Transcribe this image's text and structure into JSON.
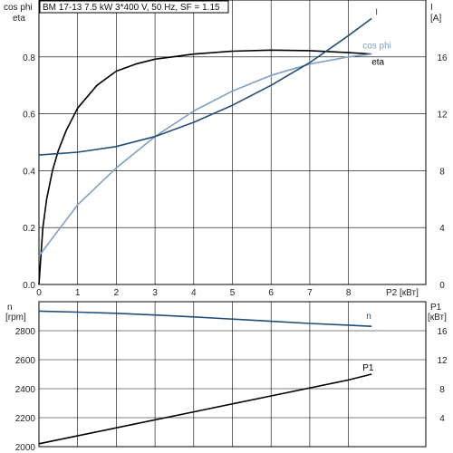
{
  "header": {
    "title": "BM 17-13   7.5 kW   3*400 V, 50 Hz, SF = 1.15"
  },
  "colors": {
    "grid": "#000000",
    "eta": "#000000",
    "I": "#1f4e79",
    "cos_phi": "#7ea0c4",
    "n": "#1f4e79",
    "P1": "#000000"
  },
  "chart_data": [
    {
      "type": "line",
      "title": "BM 17-13   7.5 kW   3*400 V, 50 Hz, SF = 1.15",
      "xlabel": "P2 [кВт]",
      "ylabel_left": "cos phi\neta",
      "ylabel_right": "I\n[A]",
      "xlim": [
        0,
        10
      ],
      "ylim_left": [
        0,
        1.0
      ],
      "ylim_right": [
        0,
        20
      ],
      "x_ticks": [
        0,
        1,
        2,
        3,
        4,
        5,
        6,
        7,
        8
      ],
      "y_ticks_left": [
        "0.0",
        "0.2",
        "0.4",
        "0.6",
        "0.8"
      ],
      "y_ticks_right": [
        "0",
        "4",
        "8",
        "12",
        "16"
      ],
      "grid": true,
      "series": [
        {
          "name": "eta",
          "axis": "left",
          "color": "#000000",
          "x": [
            0,
            0.1,
            0.2,
            0.35,
            0.5,
            0.7,
            1.0,
            1.5,
            2,
            2.5,
            3,
            4,
            5,
            6,
            7,
            8,
            8.6
          ],
          "y": [
            0,
            0.2,
            0.3,
            0.4,
            0.47,
            0.54,
            0.62,
            0.7,
            0.75,
            0.775,
            0.792,
            0.81,
            0.82,
            0.824,
            0.822,
            0.815,
            0.81
          ]
        },
        {
          "name": "cos phi",
          "axis": "left",
          "color": "#7ea0c4",
          "x": [
            0,
            0.5,
            1,
            2,
            3,
            4,
            5,
            6,
            7,
            8,
            8.6
          ],
          "y": [
            0.1,
            0.19,
            0.28,
            0.41,
            0.52,
            0.61,
            0.68,
            0.735,
            0.775,
            0.8,
            0.81
          ]
        },
        {
          "name": "I",
          "axis": "right",
          "color": "#1f4e79",
          "x": [
            0,
            0.5,
            1,
            2,
            3,
            4,
            5,
            6,
            7,
            8,
            8.6
          ],
          "y": [
            9.1,
            9.2,
            9.3,
            9.7,
            10.4,
            11.4,
            12.6,
            14.0,
            15.6,
            17.5,
            18.7
          ]
        }
      ]
    },
    {
      "type": "line",
      "xlabel": "",
      "ylabel_left": "n\n[rpm]",
      "ylabel_right": "P1\n[кВт]",
      "xlim": [
        0,
        10
      ],
      "ylim_left": [
        2000,
        3000
      ],
      "ylim_right": [
        0,
        20
      ],
      "y_ticks_left": [
        "2000",
        "2200",
        "2400",
        "2600",
        "2800"
      ],
      "y_ticks_right": [
        "4",
        "8",
        "12",
        "16"
      ],
      "grid": true,
      "series": [
        {
          "name": "n",
          "axis": "left",
          "color": "#1f4e79",
          "x": [
            0,
            1,
            2,
            3,
            4,
            5,
            6,
            7,
            8,
            8.6
          ],
          "y": [
            2935,
            2928,
            2920,
            2908,
            2895,
            2880,
            2865,
            2850,
            2838,
            2830
          ]
        },
        {
          "name": "P1",
          "axis": "right",
          "color": "#000000",
          "x": [
            0,
            2,
            4,
            6,
            8,
            8.6
          ],
          "y": [
            0.4,
            2.6,
            4.8,
            7.0,
            9.2,
            10.0
          ]
        }
      ]
    }
  ]
}
